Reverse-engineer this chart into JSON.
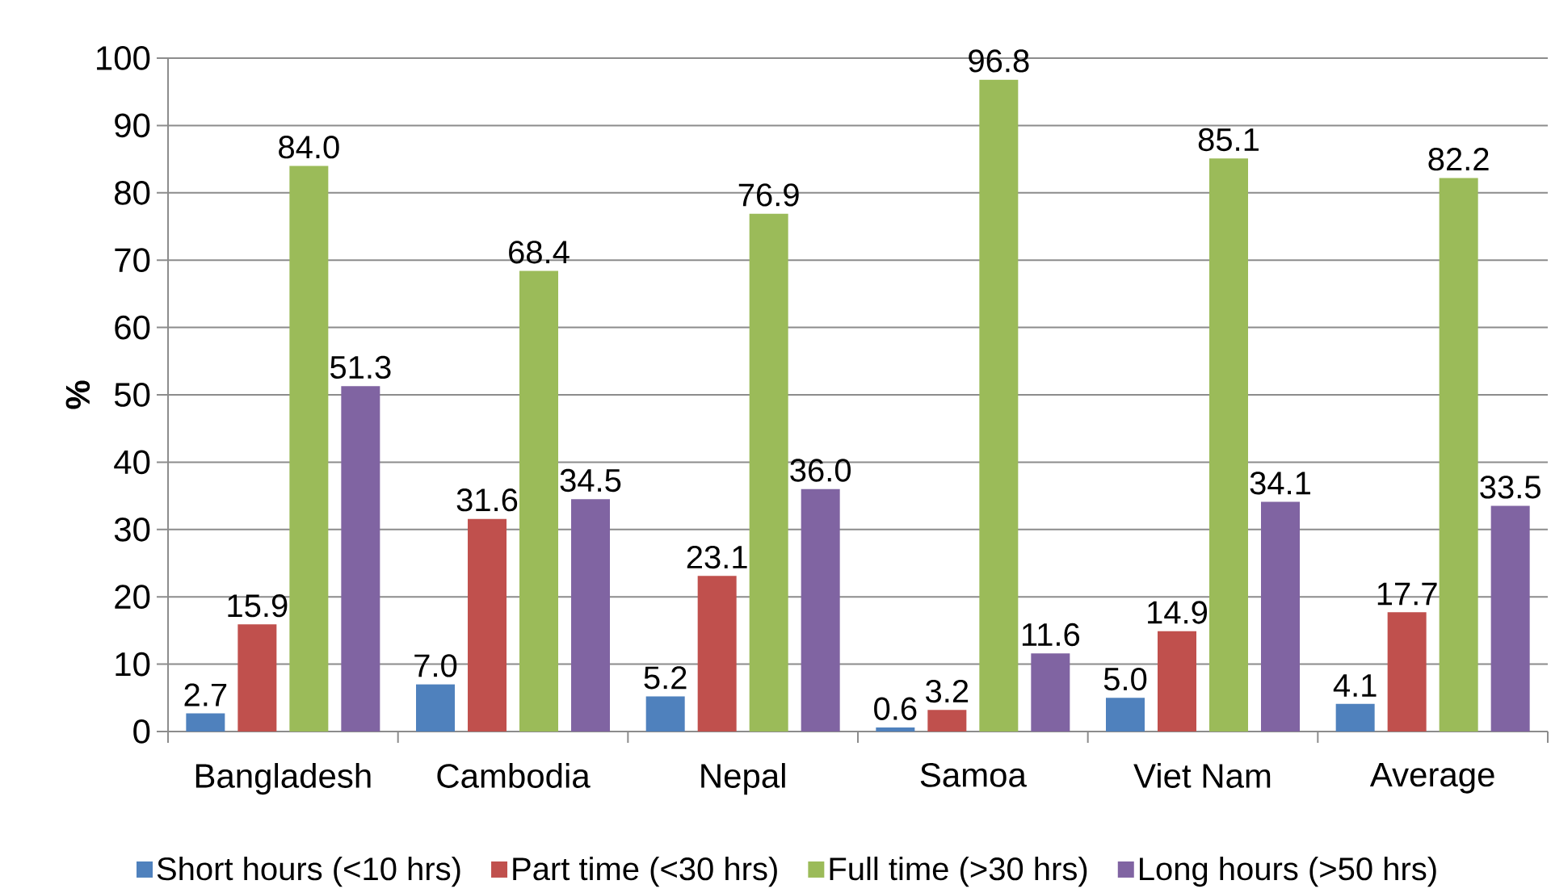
{
  "chart_data": {
    "type": "bar",
    "ylabel": "%",
    "categories": [
      "Bangladesh",
      "Cambodia",
      "Nepal",
      "Samoa",
      "Viet Nam",
      "Average"
    ],
    "series": [
      {
        "name": "Short hours (<10 hrs)",
        "color": "#4f81bd",
        "values": [
          2.7,
          7.0,
          5.2,
          0.6,
          5.0,
          4.1
        ],
        "value_labels": [
          "2.7",
          "7.0",
          "5.2",
          "0.6",
          "5.0",
          "4.1"
        ]
      },
      {
        "name": "Part time (<30 hrs)",
        "color": "#c0504d",
        "values": [
          15.9,
          31.6,
          23.1,
          3.2,
          14.9,
          17.7
        ],
        "value_labels": [
          "15.9",
          "31.6",
          "23.1",
          "3.2",
          "14.9",
          "17.7"
        ]
      },
      {
        "name": "Full time (>30 hrs)",
        "color": "#9bbb59",
        "values": [
          84.0,
          68.4,
          76.9,
          96.8,
          85.1,
          82.2
        ],
        "value_labels": [
          "84.0",
          "68.4",
          "76.9",
          "96.8",
          "85.1",
          "82.2"
        ]
      },
      {
        "name": "Long hours (>50 hrs)",
        "color": "#8064a2",
        "values": [
          51.3,
          34.5,
          36.0,
          11.6,
          34.1,
          33.5
        ],
        "value_labels": [
          "51.3",
          "34.5",
          "36.0",
          "11.6",
          "34.1",
          "33.5"
        ]
      }
    ],
    "ylim": [
      0,
      100
    ],
    "yticks": [
      0,
      10,
      20,
      30,
      40,
      50,
      60,
      70,
      80,
      90,
      100
    ],
    "grid": "y",
    "legend": "bottom"
  }
}
